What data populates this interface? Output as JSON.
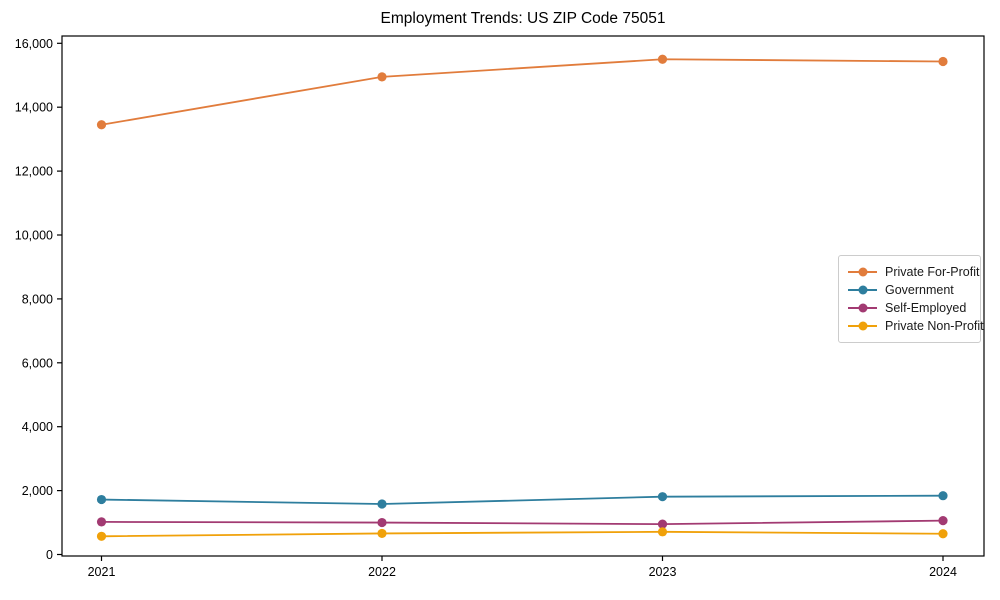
{
  "chart_data": {
    "type": "line",
    "title": "Employment Trends: US ZIP Code 75051",
    "x": [
      "2021",
      "2022",
      "2023",
      "2024"
    ],
    "series": [
      {
        "name": "Private For-Profit",
        "color": "#e17c3c",
        "values": [
          13450,
          14950,
          15500,
          15430
        ]
      },
      {
        "name": "Government",
        "color": "#2e7e9e",
        "values": [
          1720,
          1580,
          1810,
          1840
        ]
      },
      {
        "name": "Self-Employed",
        "color": "#a23a72",
        "values": [
          1020,
          1000,
          950,
          1060
        ]
      },
      {
        "name": "Private Non-Profit",
        "color": "#f0a10a",
        "values": [
          570,
          660,
          710,
          650
        ]
      }
    ],
    "xlabel": "",
    "ylabel": "",
    "ylim": [
      0,
      16000
    ],
    "ytick_step": 2000,
    "grid": false,
    "legend_position": "center-right",
    "marker": "circle",
    "spine_color": "#000000",
    "text_color": "#000000"
  }
}
